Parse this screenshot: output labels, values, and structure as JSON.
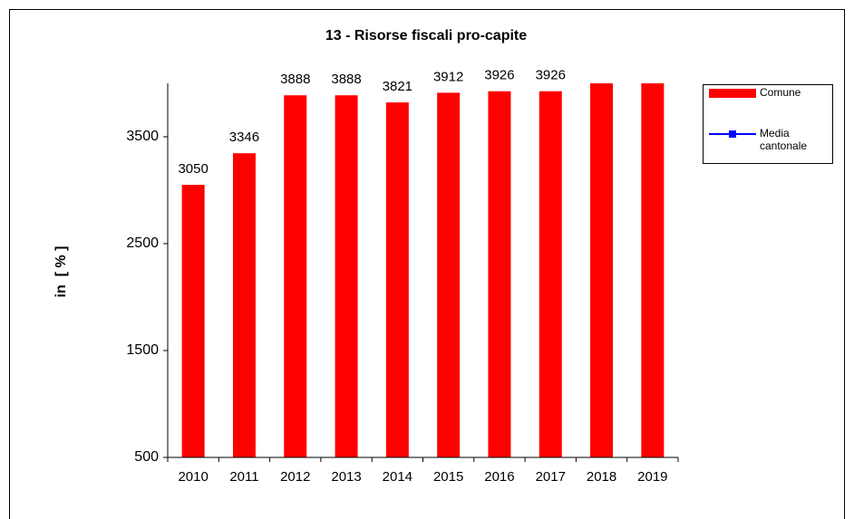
{
  "chart_data": {
    "type": "bar",
    "title": "13 - Risorse fiscali pro-capite",
    "y_label": "in  [ % ]",
    "categories": [
      "2010",
      "2011",
      "2012",
      "2013",
      "2014",
      "2015",
      "2016",
      "2017",
      "2018",
      "2019"
    ],
    "series": [
      {
        "name": "Comune",
        "color": "#ff0000",
        "values": [
          3050,
          3346,
          3888,
          3888,
          3821,
          3912,
          3926,
          3926,
          4000,
          4000
        ]
      },
      {
        "name": "Media cantonale",
        "color": "#0000ff",
        "values": [
          null,
          null,
          null,
          null,
          null,
          null,
          null,
          null,
          null,
          null
        ]
      }
    ],
    "ylim": [
      500,
      4000
    ],
    "yticks": [
      500,
      1500,
      2500,
      3500
    ],
    "grid": false
  }
}
